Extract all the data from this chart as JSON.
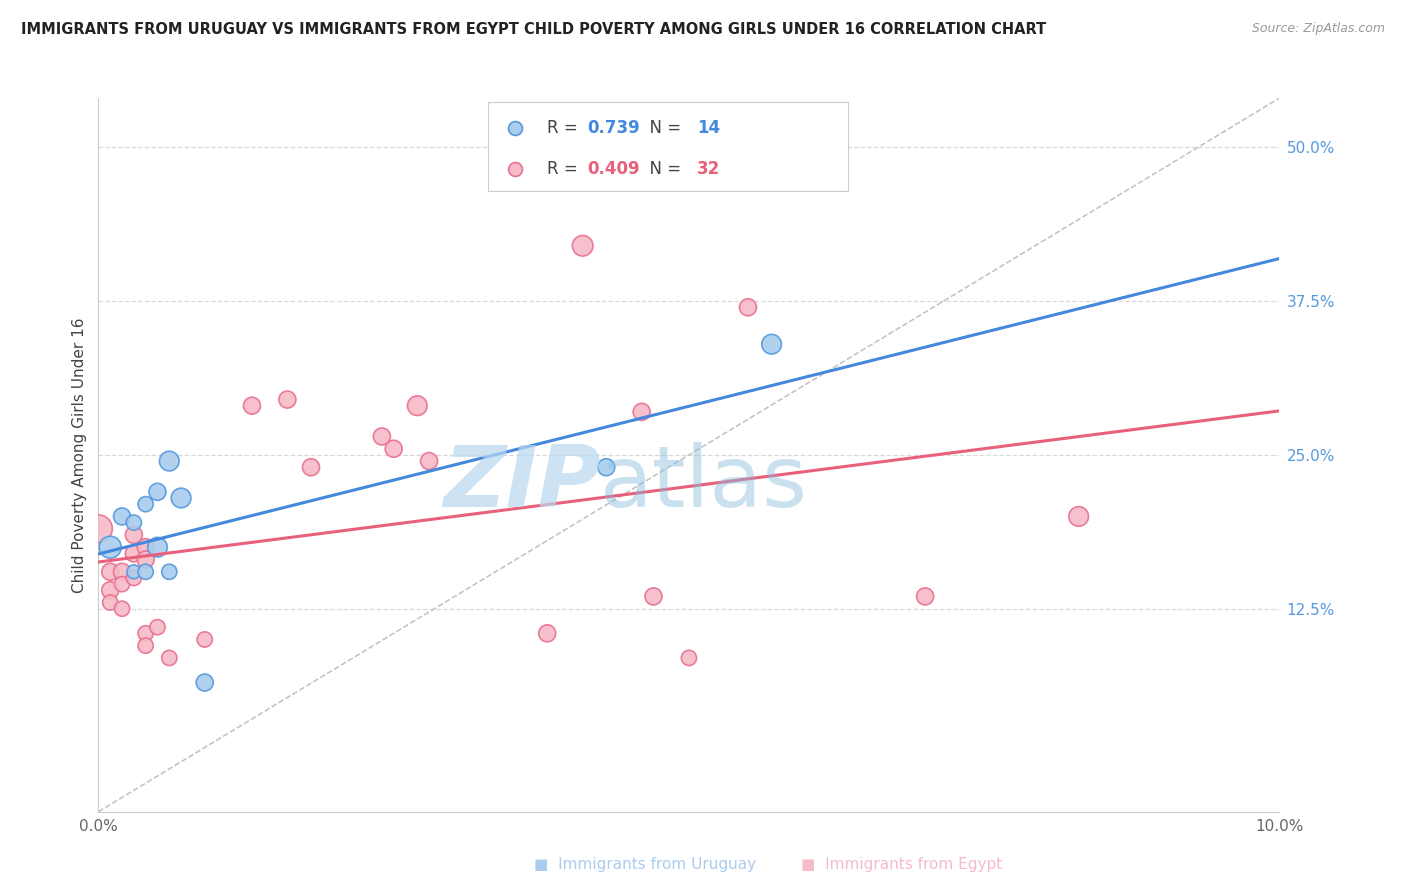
{
  "title": "IMMIGRANTS FROM URUGUAY VS IMMIGRANTS FROM EGYPT CHILD POVERTY AMONG GIRLS UNDER 16 CORRELATION CHART",
  "source": "Source: ZipAtlas.com",
  "ylabel": "Child Poverty Among Girls Under 16",
  "xlim": [
    0.0,
    0.1
  ],
  "ylim": [
    -0.04,
    0.54
  ],
  "ytick_values": [
    0.125,
    0.25,
    0.375,
    0.5
  ],
  "ytick_labels": [
    "12.5%",
    "25.0%",
    "37.5%",
    "50.0%"
  ],
  "background_color": "#ffffff",
  "grid_color": "#d8d8d8",
  "uruguay_fill": "#aaccee",
  "uruguay_edge": "#5599dd",
  "egypt_fill": "#f5bbc8",
  "egypt_edge": "#e87090",
  "uruguay_line": "#4488dd",
  "egypt_line": "#e8607a",
  "diag_color": "#c0c0c0",
  "tick_color": "#5599dd",
  "spine_color": "#cccccc",
  "uruguay_R": "0.739",
  "uruguay_N": "14",
  "egypt_R": "0.409",
  "egypt_N": "32",
  "watermark_zip": "ZIP",
  "watermark_atlas": "atlas",
  "legend_label_1": "Immigrants from Uruguay",
  "legend_label_2": "Immigrants from Egypt",
  "uruguay_points_x": [
    0.001,
    0.002,
    0.003,
    0.003,
    0.004,
    0.004,
    0.005,
    0.005,
    0.006,
    0.006,
    0.007,
    0.009,
    0.043,
    0.057
  ],
  "uruguay_points_y": [
    0.175,
    0.2,
    0.195,
    0.155,
    0.21,
    0.155,
    0.22,
    0.175,
    0.245,
    0.155,
    0.215,
    0.065,
    0.24,
    0.34
  ],
  "uruguay_sizes": [
    250,
    150,
    120,
    100,
    120,
    120,
    150,
    200,
    200,
    120,
    200,
    150,
    150,
    200
  ],
  "egypt_points_x": [
    0.001,
    0.001,
    0.001,
    0.002,
    0.002,
    0.002,
    0.003,
    0.003,
    0.003,
    0.004,
    0.004,
    0.004,
    0.004,
    0.005,
    0.006,
    0.009,
    0.013,
    0.016,
    0.018,
    0.024,
    0.025,
    0.027,
    0.028,
    0.038,
    0.041,
    0.046,
    0.047,
    0.05,
    0.055,
    0.07,
    0.083,
    0.0
  ],
  "egypt_points_y": [
    0.155,
    0.14,
    0.13,
    0.155,
    0.145,
    0.125,
    0.185,
    0.17,
    0.15,
    0.175,
    0.165,
    0.105,
    0.095,
    0.11,
    0.085,
    0.1,
    0.29,
    0.295,
    0.24,
    0.265,
    0.255,
    0.29,
    0.245,
    0.105,
    0.42,
    0.285,
    0.135,
    0.085,
    0.37,
    0.135,
    0.2,
    0.19
  ],
  "egypt_sizes": [
    150,
    150,
    120,
    150,
    120,
    120,
    150,
    150,
    120,
    150,
    150,
    120,
    120,
    120,
    120,
    120,
    150,
    150,
    150,
    150,
    150,
    200,
    150,
    150,
    220,
    150,
    150,
    120,
    150,
    150,
    200,
    400
  ]
}
